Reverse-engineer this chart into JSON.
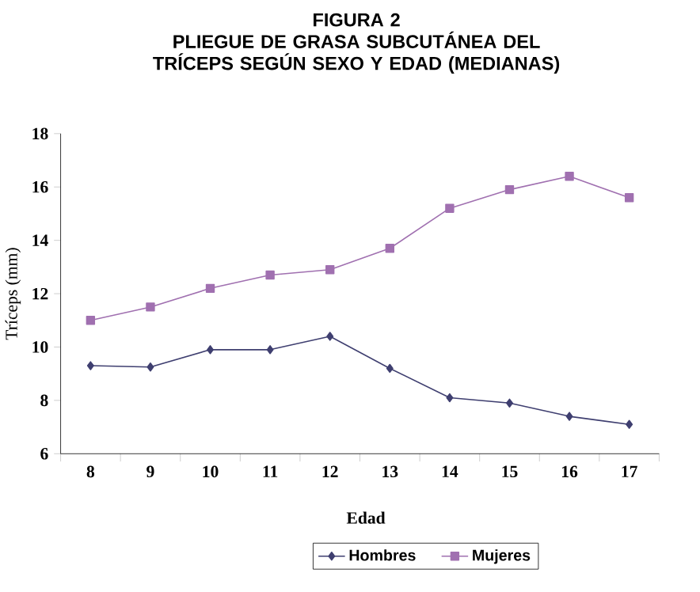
{
  "chart_data": {
    "type": "line",
    "title": "FIGURA 2",
    "subtitle": "PLIEGUE DE GRASA SUBCUTÁNEA DEL TRÍCEPS SEGÚN SEXO Y EDAD (MEDIANAS)",
    "xlabel": "Edad",
    "ylabel": "Tríceps (mm)",
    "categories": [
      "8",
      "9",
      "10",
      "11",
      "12",
      "13",
      "14",
      "15",
      "16",
      "17"
    ],
    "series": [
      {
        "name": "Hombres",
        "color": "#3f3f70",
        "marker": "diamond",
        "values": [
          9.3,
          9.25,
          9.9,
          9.9,
          10.4,
          9.2,
          8.1,
          7.9,
          7.4,
          7.1
        ]
      },
      {
        "name": "Mujeres",
        "color": "#a070b0",
        "marker": "square",
        "values": [
          11.0,
          11.5,
          12.2,
          12.7,
          12.9,
          13.7,
          15.2,
          15.9,
          16.4,
          15.6
        ]
      }
    ],
    "ylim": [
      6,
      18
    ],
    "yticks": [
      6,
      8,
      10,
      12,
      14,
      16,
      18
    ],
    "grid": false,
    "legend": "bottom"
  }
}
